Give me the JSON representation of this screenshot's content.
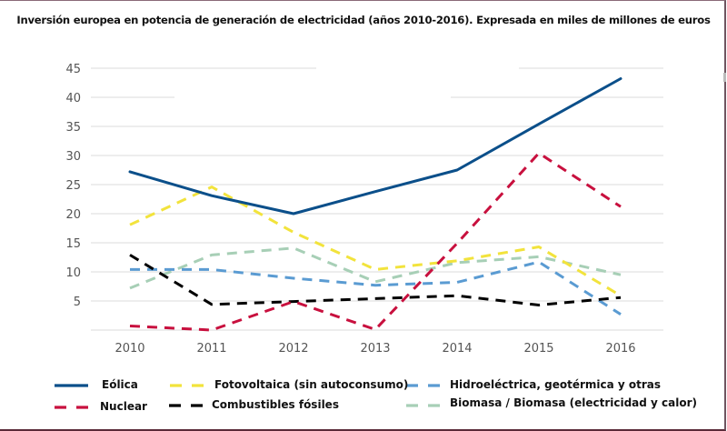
{
  "chart_data": {
    "type": "line",
    "title": "Inversión europea en potencia de generación de electricidad (años 2010-2016). Expresada en miles de millones de euros",
    "xlabel": "",
    "ylabel": "",
    "categories": [
      "2010",
      "2011",
      "2012",
      "2013",
      "2014",
      "2015",
      "2016"
    ],
    "ylim": [
      0,
      45
    ],
    "yticks": [
      5,
      10,
      15,
      20,
      25,
      30,
      35,
      40,
      45
    ],
    "grid": true,
    "legend_position": "bottom",
    "series": [
      {
        "name": "Eólica",
        "color": "#0b4f8a",
        "style": "solid",
        "values": [
          27.2,
          23.1,
          20.0,
          23.8,
          27.5,
          35.4,
          43.2
        ]
      },
      {
        "name": "Fotovoltaica (sin autoconsumo)",
        "color": "#f2e33c",
        "style": "dashed",
        "values": [
          18.1,
          24.6,
          16.8,
          10.4,
          11.9,
          14.3,
          5.9
        ]
      },
      {
        "name": "Hidroeléctrica, geotérmica y otras",
        "color": "#5a9bd2",
        "style": "dashed",
        "values": [
          10.4,
          10.4,
          8.9,
          7.7,
          8.2,
          11.7,
          2.7
        ]
      },
      {
        "name": "Nuclear",
        "color": "#c8103e",
        "style": "dashed",
        "values": [
          0.7,
          0.0,
          4.9,
          0.1,
          14.9,
          30.4,
          21.2
        ]
      },
      {
        "name": "Combustibles fósiles",
        "color": "#000000",
        "style": "dashed",
        "values": [
          12.9,
          4.4,
          4.9,
          5.4,
          5.9,
          4.3,
          5.6
        ]
      },
      {
        "name": "Biomasa / Biomasa (electricidad y calor)",
        "color": "#a7cfb6",
        "style": "dashed",
        "values": [
          7.2,
          12.9,
          14.1,
          8.3,
          11.6,
          12.6,
          9.5
        ]
      }
    ]
  },
  "legend": [
    {
      "label": "Eólica"
    },
    {
      "label": "Fotovoltaica (sin autoconsumo)"
    },
    {
      "label": "Hidroeléctrica, geotérmica y otras"
    },
    {
      "label": "Nuclear"
    },
    {
      "label": "Combustibles fósiles"
    },
    {
      "label": "Biomasa / Biomasa (electricidad y calor)"
    }
  ]
}
